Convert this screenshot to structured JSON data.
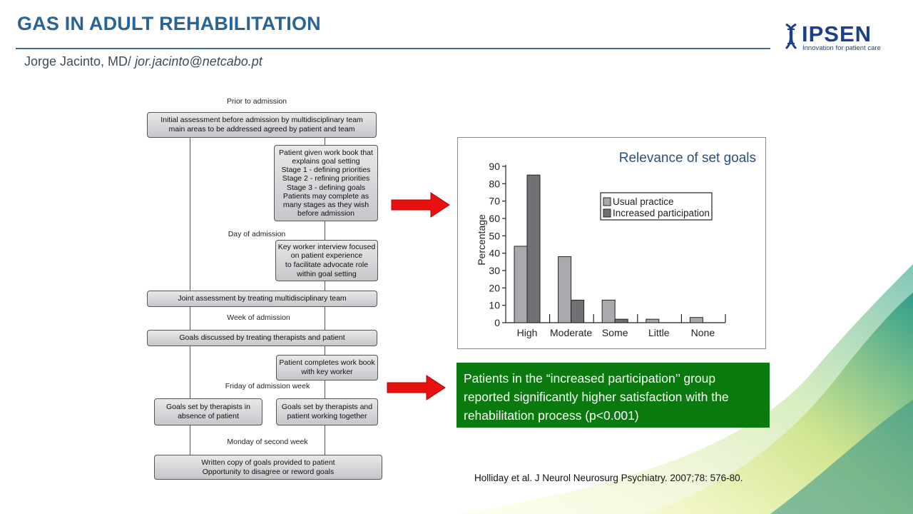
{
  "header": {
    "title": "GAS IN ADULT REHABILITATION",
    "author_name": "Jorge Jacinto, MD/ ",
    "author_email": "jor.jacinto@netcabo.pt"
  },
  "logo": {
    "word": "IPSEN",
    "tagline": "Innovation for patient care"
  },
  "flowchart": {
    "prior_label": "Prior to admission",
    "box_initial": "Initial assessment before admission by multidisciplinary team\nmain areas to be addressed agreed by patient and team",
    "box_workbook": "Patient given work book that\nexplains goal setting\nStage 1 - defining priorities\nStage 2 - refining priorities\nStage 3 - defining goals\nPatients may complete as\nmany stages as they wish\nbefore admission",
    "day_label": "Day of admission",
    "box_keyworker": "Key worker interview focused\non patient experience\nto facilitate advocate role\nwithin goal setting",
    "box_joint": "Joint assessment by treating multidisciplinary team",
    "week_label": "Week of admission",
    "box_discussed": "Goals discussed by treating therapists and patient",
    "box_completes": "Patient completes work book\nwith key worker",
    "friday_label": "Friday of admission week",
    "box_set_absence": "Goals set by therapists in\nabsence of patient",
    "box_set_together": "Goals set by therapists and\npatient working together",
    "monday_label": "Monday of second week",
    "box_written": "Written copy of goals provided to patient\nOpportunity to disagree or reword goals"
  },
  "chart_data": {
    "type": "bar",
    "title": "Relevance of set goals",
    "ylabel": "Percentage",
    "xlabel": "",
    "categories": [
      "High",
      "Moderate",
      "Some",
      "Little",
      "None"
    ],
    "series": [
      {
        "name": "Usual practice",
        "values": [
          44,
          38,
          13,
          2,
          3
        ],
        "color": "#a9aaad"
      },
      {
        "name": "Increased participation",
        "values": [
          85,
          13,
          2,
          0,
          0
        ],
        "color": "#707174"
      }
    ],
    "yticks": [
      0,
      10,
      20,
      30,
      40,
      50,
      60,
      70,
      80,
      90
    ],
    "ylim": [
      0,
      90
    ],
    "grid": false,
    "legend_position": "top-right"
  },
  "finding": {
    "text": "Patients in the “increased participation’’ group reported significantly higher satisfaction with the rehabilitation process (p<0.001)",
    "background": "#0a7a0f"
  },
  "citation": "Holliday et al. J Neurol Neurosurg Psychiatry. 2007;78: 576-80.",
  "colors": {
    "title": "#2a6496",
    "arrow": "#e8110f"
  }
}
